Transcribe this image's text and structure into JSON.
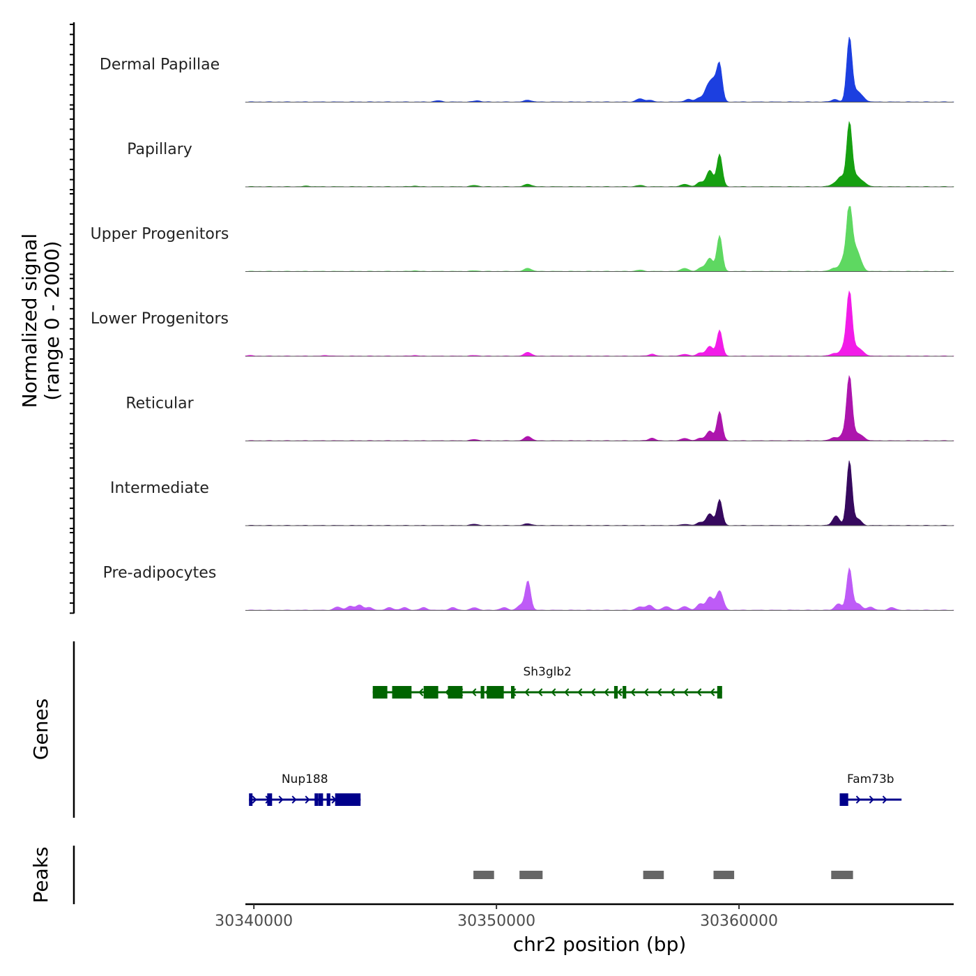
{
  "chart_data": {
    "type": "area",
    "genome": "chr2",
    "x_range": [
      30339650,
      30368850
    ],
    "y_range": [
      0,
      2000
    ],
    "ylabel_line1": "Normalized signal",
    "ylabel_line2": "(range 0 - 2000)",
    "xlabel": "chr2 position (bp)",
    "x_ticks": [
      {
        "value": 30340000,
        "label": "30340000"
      },
      {
        "value": 30350000,
        "label": "30350000"
      },
      {
        "value": 30360000,
        "label": "30360000"
      }
    ],
    "series": [
      {
        "name": "Dermal Papillae",
        "color": "#1c3fe0",
        "peaks": [
          [
            30347600,
            0.02
          ],
          [
            30349200,
            0.02
          ],
          [
            30351300,
            0.03
          ],
          [
            30355900,
            0.05
          ],
          [
            30356300,
            0.03
          ],
          [
            30357900,
            0.04
          ],
          [
            30358350,
            0.06
          ],
          [
            30358700,
            0.2
          ],
          [
            30358950,
            0.3
          ],
          [
            30359200,
            0.55
          ],
          [
            30363950,
            0.04
          ],
          [
            30364550,
            1.0
          ],
          [
            30364850,
            0.15
          ],
          [
            30365100,
            0.06
          ]
        ]
      },
      {
        "name": "Papillary",
        "color": "#16a011",
        "peaks": [
          [
            30342200,
            0.01
          ],
          [
            30346600,
            0.01
          ],
          [
            30349100,
            0.02
          ],
          [
            30351300,
            0.04
          ],
          [
            30355900,
            0.02
          ],
          [
            30357750,
            0.04
          ],
          [
            30358400,
            0.07
          ],
          [
            30358800,
            0.25
          ],
          [
            30359200,
            0.5
          ],
          [
            30363900,
            0.04
          ],
          [
            30364200,
            0.15
          ],
          [
            30364550,
            1.0
          ],
          [
            30364850,
            0.15
          ],
          [
            30365150,
            0.06
          ]
        ]
      },
      {
        "name": "Upper Progenitors",
        "color": "#5ed861",
        "peaks": [
          [
            30346600,
            0.01
          ],
          [
            30349100,
            0.01
          ],
          [
            30351300,
            0.05
          ],
          [
            30355900,
            0.02
          ],
          [
            30357750,
            0.05
          ],
          [
            30358450,
            0.06
          ],
          [
            30358800,
            0.2
          ],
          [
            30359200,
            0.55
          ],
          [
            30363900,
            0.05
          ],
          [
            30364300,
            0.18
          ],
          [
            30364550,
            1.0
          ],
          [
            30364800,
            0.3
          ],
          [
            30365000,
            0.1
          ]
        ]
      },
      {
        "name": "Lower Progenitors",
        "color": "#f21ce8",
        "peaks": [
          [
            30339800,
            0.01
          ],
          [
            30343000,
            0.01
          ],
          [
            30346600,
            0.01
          ],
          [
            30349100,
            0.01
          ],
          [
            30351300,
            0.06
          ],
          [
            30356400,
            0.03
          ],
          [
            30357750,
            0.03
          ],
          [
            30358400,
            0.05
          ],
          [
            30358800,
            0.15
          ],
          [
            30359200,
            0.4
          ],
          [
            30363900,
            0.04
          ],
          [
            30364300,
            0.12
          ],
          [
            30364550,
            1.0
          ],
          [
            30364850,
            0.12
          ],
          [
            30365100,
            0.05
          ]
        ]
      },
      {
        "name": "Reticular",
        "color": "#ad15ad",
        "peaks": [
          [
            30349100,
            0.02
          ],
          [
            30351300,
            0.07
          ],
          [
            30356400,
            0.04
          ],
          [
            30357750,
            0.04
          ],
          [
            30358400,
            0.04
          ],
          [
            30358800,
            0.15
          ],
          [
            30359200,
            0.45
          ],
          [
            30363900,
            0.05
          ],
          [
            30364300,
            0.1
          ],
          [
            30364550,
            1.0
          ],
          [
            30364850,
            0.1
          ],
          [
            30365100,
            0.05
          ]
        ]
      },
      {
        "name": "Intermediate",
        "color": "#36095e",
        "peaks": [
          [
            30349100,
            0.02
          ],
          [
            30351300,
            0.03
          ],
          [
            30357750,
            0.02
          ],
          [
            30358400,
            0.05
          ],
          [
            30358800,
            0.18
          ],
          [
            30359200,
            0.4
          ],
          [
            30364000,
            0.15
          ],
          [
            30364550,
            1.0
          ],
          [
            30364900,
            0.1
          ]
        ]
      },
      {
        "name": "Pre-adipocytes",
        "color": "#be5bf7",
        "peaks": [
          [
            30343450,
            0.05
          ],
          [
            30343950,
            0.06
          ],
          [
            30344350,
            0.08
          ],
          [
            30344750,
            0.04
          ],
          [
            30345600,
            0.04
          ],
          [
            30346200,
            0.04
          ],
          [
            30347000,
            0.04
          ],
          [
            30348200,
            0.04
          ],
          [
            30349100,
            0.04
          ],
          [
            30350300,
            0.04
          ],
          [
            30351000,
            0.08
          ],
          [
            30351300,
            0.45
          ],
          [
            30355900,
            0.05
          ],
          [
            30356300,
            0.08
          ],
          [
            30357000,
            0.06
          ],
          [
            30357750,
            0.06
          ],
          [
            30358400,
            0.1
          ],
          [
            30358800,
            0.2
          ],
          [
            30359200,
            0.3
          ],
          [
            30364100,
            0.1
          ],
          [
            30364550,
            0.65
          ],
          [
            30364900,
            0.1
          ],
          [
            30365400,
            0.05
          ],
          [
            30366300,
            0.04
          ]
        ]
      }
    ],
    "genes": [
      {
        "name": "Sh3glb2",
        "color": "#006400",
        "strand": "-",
        "row": 1,
        "start": 30344900,
        "end": 30359300,
        "exons": [
          [
            30344900,
            30345500
          ],
          [
            30345700,
            30346500
          ],
          [
            30347000,
            30347600
          ],
          [
            30348000,
            30348600
          ],
          [
            30349350,
            30349500
          ],
          [
            30349600,
            30350300
          ],
          [
            30350600,
            30350700
          ],
          [
            30354850,
            30355000
          ],
          [
            30355200,
            30355350
          ],
          [
            30359100,
            30359300
          ]
        ]
      },
      {
        "name": "Nup188",
        "color": "#00008b",
        "strand": "+",
        "row": 2,
        "start": 30339800,
        "end": 30344400,
        "exons": [
          [
            30339800,
            30339900
          ],
          [
            30340550,
            30340750
          ],
          [
            30342500,
            30342600
          ],
          [
            30342650,
            30342850
          ],
          [
            30343000,
            30343150
          ],
          [
            30343350,
            30344400
          ]
        ]
      },
      {
        "name": "Fam73b",
        "color": "#00008b",
        "strand": "+",
        "row": 2,
        "start": 30364150,
        "end": 30366700,
        "exons": [
          [
            30364150,
            30364500
          ]
        ]
      }
    ],
    "genes_label": "Genes",
    "peaks_label": "Peaks",
    "peaks": [
      [
        30349050,
        30349900
      ],
      [
        30350950,
        30351900
      ],
      [
        30356050,
        30356900
      ],
      [
        30358950,
        30359800
      ],
      [
        30363800,
        30364700
      ]
    ],
    "peak_color": "#666666"
  }
}
